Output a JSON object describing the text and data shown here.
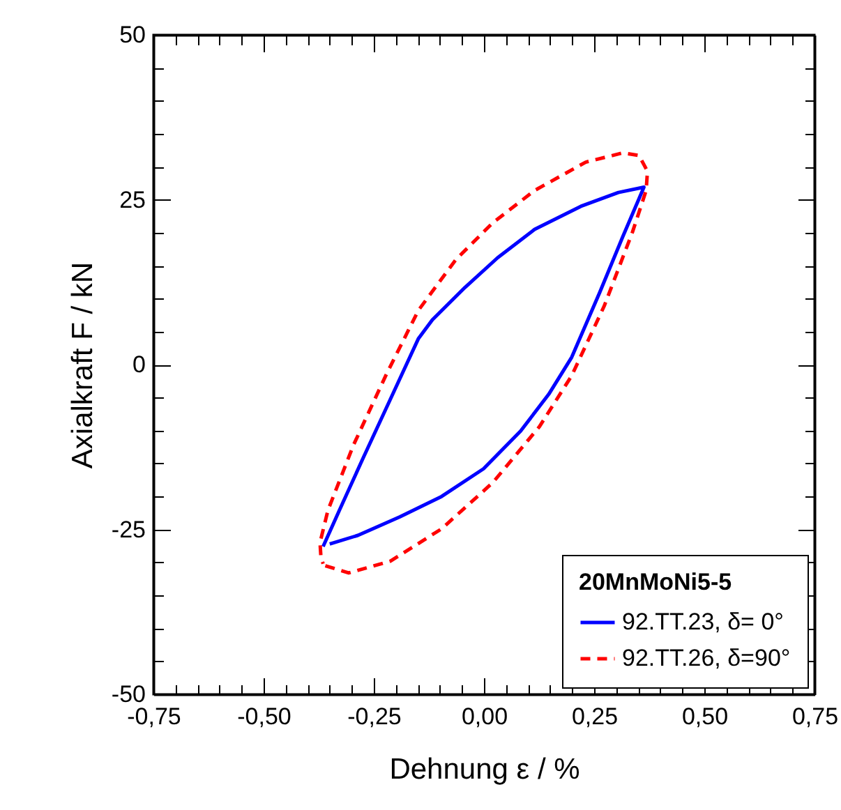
{
  "chart_data": {
    "type": "line",
    "xlabel": "Dehnung ε / %",
    "ylabel": "Axialkraft F / kN",
    "legend_title": "20MnMoNi5-5",
    "legend": "bottom right",
    "grid": false,
    "marker": "none",
    "xlim": [
      -0.75,
      0.75
    ],
    "ylim": [
      -50,
      50
    ],
    "xticks": [
      {
        "value": -0.75,
        "label": "-0,75"
      },
      {
        "value": -0.7,
        "label": null
      },
      {
        "value": -0.65,
        "label": null
      },
      {
        "value": -0.6,
        "label": null
      },
      {
        "value": -0.55,
        "label": null
      },
      {
        "value": -0.5,
        "label": "-0,50"
      },
      {
        "value": -0.45,
        "label": null
      },
      {
        "value": -0.4,
        "label": null
      },
      {
        "value": -0.35,
        "label": null
      },
      {
        "value": -0.3,
        "label": null
      },
      {
        "value": -0.25,
        "label": "-0,25"
      },
      {
        "value": -0.2,
        "label": null
      },
      {
        "value": -0.15,
        "label": null
      },
      {
        "value": -0.1,
        "label": null
      },
      {
        "value": -0.05,
        "label": null
      },
      {
        "value": 0,
        "label": "0,00"
      },
      {
        "value": 0.05,
        "label": null
      },
      {
        "value": 0.1,
        "label": null
      },
      {
        "value": 0.15,
        "label": null
      },
      {
        "value": 0.2,
        "label": null
      },
      {
        "value": 0.25,
        "label": "0,25"
      },
      {
        "value": 0.3,
        "label": null
      },
      {
        "value": 0.35,
        "label": null
      },
      {
        "value": 0.4,
        "label": null
      },
      {
        "value": 0.45,
        "label": null
      },
      {
        "value": 0.5,
        "label": "0,50"
      },
      {
        "value": 0.55,
        "label": null
      },
      {
        "value": 0.6,
        "label": null
      },
      {
        "value": 0.65,
        "label": null
      },
      {
        "value": 0.7,
        "label": null
      },
      {
        "value": 0.75,
        "label": "0,75"
      }
    ],
    "yticks": [
      -50,
      {
        "value": -45,
        "label": null
      },
      {
        "value": -40,
        "label": null
      },
      {
        "value": -35,
        "label": null
      },
      {
        "value": -30,
        "label": null
      },
      -25,
      {
        "value": -20,
        "label": null
      },
      {
        "value": -15,
        "label": null
      },
      {
        "value": -10,
        "label": null
      },
      {
        "value": -5,
        "label": null
      },
      0,
      {
        "value": 5,
        "label": null
      },
      {
        "value": 10,
        "label": null
      },
      {
        "value": 15,
        "label": null
      },
      {
        "value": 20,
        "label": null
      },
      25,
      {
        "value": 30,
        "label": null
      },
      {
        "value": 35,
        "label": null
      },
      {
        "value": 40,
        "label": null
      },
      {
        "value": 45,
        "label": null
      },
      50
    ],
    "series": [
      {
        "name": "92.TT.23, δ=  0°",
        "color": "#0000ff",
        "line_style": "solid",
        "x": [
          -0.365,
          -0.328,
          -0.275,
          -0.212,
          -0.149,
          -0.117,
          -0.043,
          0.031,
          0.115,
          0.22,
          0.305,
          0.363,
          0.315,
          0.263,
          0.199,
          0.147,
          0.083,
          -0.001,
          -0.096,
          -0.191,
          -0.286,
          -0.35
        ],
        "values": [
          -27.6,
          -22.1,
          -14.3,
          -5.2,
          3.9,
          6.8,
          11.7,
          16.2,
          20.5,
          24.0,
          26.1,
          26.9,
          19.4,
          11.0,
          1.1,
          -4.5,
          -10.1,
          -15.8,
          -20.0,
          -23.1,
          -25.9,
          -27.2
        ]
      },
      {
        "name": "92.TT.26, δ=90°",
        "color": "#ff0000",
        "line_style": "dashed",
        "x": [
          -0.36,
          -0.307,
          -0.212,
          -0.096,
          0.02,
          0.126,
          0.199,
          0.273,
          0.337,
          0.368,
          0.371,
          0.352,
          0.315,
          0.231,
          0.115,
          0.02,
          -0.064,
          -0.149,
          -0.223,
          -0.296,
          -0.354,
          -0.372,
          -0.37,
          -0.365
        ],
        "values": [
          -30.5,
          -31.6,
          -29.8,
          -24.9,
          -17.9,
          -9.4,
          -1.7,
          8.9,
          20.1,
          26.4,
          29.3,
          31.7,
          32.1,
          30.7,
          26.4,
          21.5,
          15.9,
          8.2,
          -1.7,
          -12.2,
          -22.1,
          -27.0,
          -29.1,
          -30.2
        ]
      }
    ]
  }
}
